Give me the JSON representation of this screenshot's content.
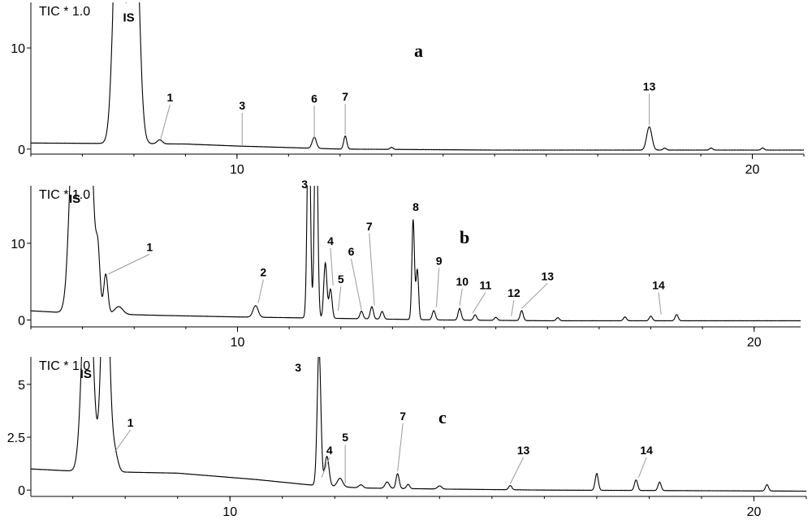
{
  "chart_data": [
    {
      "type": "line",
      "panel_label": "a",
      "header": "TIC * 1.0",
      "x_ticks": [
        10,
        20
      ],
      "y_ticks": [
        0,
        10
      ],
      "xlim": [
        6.0,
        21.0
      ],
      "ylim": [
        -0.5,
        14.5
      ],
      "baseline": [
        [
          6.0,
          0.6
        ],
        [
          9.0,
          0.5
        ],
        [
          10.0,
          0.3
        ],
        [
          12.0,
          0.0
        ],
        [
          15.0,
          -0.1
        ],
        [
          21.0,
          -0.1
        ]
      ],
      "peaks": [
        {
          "x": 7.7,
          "h": 28.0,
          "w": 0.09
        },
        {
          "x": 8.0,
          "h": 28.0,
          "w": 0.09
        },
        {
          "x": 8.5,
          "h": 0.4,
          "w": 0.05
        },
        {
          "x": 11.5,
          "h": 1.1,
          "w": 0.04
        },
        {
          "x": 12.1,
          "h": 1.3,
          "w": 0.03
        },
        {
          "x": 13.0,
          "h": 0.2,
          "w": 0.03
        },
        {
          "x": 18.0,
          "h": 2.3,
          "w": 0.05
        },
        {
          "x": 18.3,
          "h": 0.2,
          "w": 0.03
        },
        {
          "x": 19.2,
          "h": 0.2,
          "w": 0.03
        },
        {
          "x": 20.2,
          "h": 0.2,
          "w": 0.03
        }
      ],
      "labels": [
        {
          "text": "IS",
          "kind": "is",
          "x": 7.9,
          "y": 12.6
        },
        {
          "text": "1",
          "x": 8.7,
          "y": 4.7,
          "px": 8.52,
          "py": 1.0
        },
        {
          "text": "3",
          "x": 10.1,
          "y": 3.9,
          "px": 10.1,
          "py": 0.4
        },
        {
          "text": "6",
          "x": 11.5,
          "y": 4.6,
          "px": 11.5,
          "py": 1.1
        },
        {
          "text": "7",
          "x": 12.1,
          "y": 4.8,
          "px": 12.1,
          "py": 1.5
        },
        {
          "text": "13",
          "x": 18.0,
          "y": 5.8,
          "px": 18.0,
          "py": 2.4
        }
      ]
    },
    {
      "type": "line",
      "panel_label": "b",
      "header": "TIC * 1.0",
      "x_ticks": [
        10,
        20
      ],
      "y_ticks": [
        0,
        10
      ],
      "xlim": [
        6.0,
        20.9
      ],
      "ylim": [
        -0.9,
        17.5
      ],
      "baseline": [
        [
          6.0,
          1.2
        ],
        [
          6.8,
          0.9
        ],
        [
          8.5,
          0.6
        ],
        [
          10.0,
          0.4
        ],
        [
          12.0,
          0.2
        ],
        [
          14.0,
          0.0
        ],
        [
          16.0,
          -0.1
        ],
        [
          20.9,
          -0.1
        ]
      ],
      "peaks": [
        {
          "x": 6.85,
          "h": 30.0,
          "w": 0.09
        },
        {
          "x": 7.12,
          "h": 30.0,
          "w": 0.08
        },
        {
          "x": 7.3,
          "h": 7.2,
          "w": 0.04
        },
        {
          "x": 7.45,
          "h": 5.2,
          "w": 0.04
        },
        {
          "x": 7.7,
          "h": 1.0,
          "w": 0.08
        },
        {
          "x": 10.35,
          "h": 1.5,
          "w": 0.05
        },
        {
          "x": 11.38,
          "h": 30.0,
          "w": 0.03
        },
        {
          "x": 11.52,
          "h": 30.0,
          "w": 0.03
        },
        {
          "x": 11.7,
          "h": 7.2,
          "w": 0.03
        },
        {
          "x": 11.8,
          "h": 3.8,
          "w": 0.03
        },
        {
          "x": 12.4,
          "h": 1.0,
          "w": 0.03
        },
        {
          "x": 12.6,
          "h": 1.6,
          "w": 0.03
        },
        {
          "x": 12.8,
          "h": 1.0,
          "w": 0.03
        },
        {
          "x": 13.4,
          "h": 13.0,
          "w": 0.025
        },
        {
          "x": 13.48,
          "h": 6.5,
          "w": 0.025
        },
        {
          "x": 13.8,
          "h": 1.2,
          "w": 0.03
        },
        {
          "x": 14.3,
          "h": 1.5,
          "w": 0.03
        },
        {
          "x": 14.6,
          "h": 0.7,
          "w": 0.03
        },
        {
          "x": 15.0,
          "h": 0.4,
          "w": 0.03
        },
        {
          "x": 15.5,
          "h": 1.3,
          "w": 0.03
        },
        {
          "x": 16.2,
          "h": 0.4,
          "w": 0.03
        },
        {
          "x": 17.5,
          "h": 0.5,
          "w": 0.03
        },
        {
          "x": 18.0,
          "h": 0.6,
          "w": 0.03
        },
        {
          "x": 18.5,
          "h": 0.8,
          "w": 0.03
        }
      ],
      "labels": [
        {
          "text": "IS",
          "kind": "is",
          "x": 6.85,
          "y": 15.3
        },
        {
          "text": "3",
          "kind": "plain",
          "x": 11.3,
          "y": 17.2
        },
        {
          "text": "1",
          "x": 8.3,
          "y": 9.0,
          "px": 7.5,
          "py": 6.0
        },
        {
          "text": "2",
          "x": 10.5,
          "y": 5.7,
          "px": 10.4,
          "py": 2.2
        },
        {
          "text": "4",
          "x": 11.8,
          "y": 9.8,
          "px": 11.85,
          "py": 4.5
        },
        {
          "text": "5",
          "x": 12.0,
          "y": 4.8,
          "px": 11.95,
          "py": 1.2
        },
        {
          "text": "6",
          "x": 12.2,
          "y": 8.4,
          "px": 12.4,
          "py": 1.3
        },
        {
          "text": "7",
          "x": 12.55,
          "y": 11.7,
          "px": 12.65,
          "py": 1.9
        },
        {
          "text": "8",
          "x": 13.45,
          "y": 14.2,
          "kind": "plain"
        },
        {
          "text": "9",
          "x": 13.9,
          "y": 7.2,
          "px": 13.85,
          "py": 1.7
        },
        {
          "text": "10",
          "x": 14.35,
          "y": 4.5,
          "px": 14.3,
          "py": 1.9
        },
        {
          "text": "11",
          "x": 14.8,
          "y": 4.0,
          "px": 14.55,
          "py": 0.9
        },
        {
          "text": "12",
          "x": 15.35,
          "y": 3.0,
          "px": 15.3,
          "py": 0.5
        },
        {
          "text": "13",
          "x": 16.0,
          "y": 5.2,
          "px": 15.5,
          "py": 1.5
        },
        {
          "text": "14",
          "x": 18.15,
          "y": 4.0,
          "px": 18.2,
          "py": 0.7
        }
      ]
    },
    {
      "type": "line",
      "panel_label": "c",
      "header": "TIC * 1.0",
      "x_ticks": [
        10,
        20
      ],
      "y_ticks": [
        0,
        2.5,
        5
      ],
      "xlim": [
        6.2,
        21.0
      ],
      "ylim": [
        -0.3,
        6.3
      ],
      "baseline": [
        [
          6.2,
          1.0
        ],
        [
          7.0,
          0.9
        ],
        [
          9.0,
          0.8
        ],
        [
          10.5,
          0.5
        ],
        [
          11.5,
          0.25
        ],
        [
          12.5,
          0.1
        ],
        [
          14.0,
          0.05
        ],
        [
          16.0,
          0.0
        ],
        [
          21.0,
          -0.05
        ]
      ],
      "peaks": [
        {
          "x": 7.28,
          "h": 12.0,
          "w": 0.09
        },
        {
          "x": 7.62,
          "h": 12.0,
          "w": 0.07
        },
        {
          "x": 7.8,
          "h": 0.9,
          "w": 0.06
        },
        {
          "x": 11.7,
          "h": 6.5,
          "w": 0.035
        },
        {
          "x": 11.85,
          "h": 1.4,
          "w": 0.04
        },
        {
          "x": 12.1,
          "h": 0.4,
          "w": 0.05
        },
        {
          "x": 12.5,
          "h": 0.15,
          "w": 0.04
        },
        {
          "x": 13.0,
          "h": 0.3,
          "w": 0.04
        },
        {
          "x": 13.2,
          "h": 0.7,
          "w": 0.03
        },
        {
          "x": 13.4,
          "h": 0.2,
          "w": 0.03
        },
        {
          "x": 14.0,
          "h": 0.15,
          "w": 0.04
        },
        {
          "x": 15.35,
          "h": 0.2,
          "w": 0.03
        },
        {
          "x": 17.0,
          "h": 0.8,
          "w": 0.03
        },
        {
          "x": 17.75,
          "h": 0.5,
          "w": 0.03
        },
        {
          "x": 18.2,
          "h": 0.4,
          "w": 0.03
        },
        {
          "x": 20.25,
          "h": 0.3,
          "w": 0.03
        }
      ],
      "labels": [
        {
          "text": "IS",
          "kind": "is",
          "x": 7.25,
          "y": 5.3
        },
        {
          "text": "3",
          "kind": "plain",
          "x": 11.3,
          "y": 5.6
        },
        {
          "text": "1",
          "x": 8.1,
          "y": 3.0,
          "px": 7.8,
          "py": 1.8
        },
        {
          "text": "4",
          "x": 11.9,
          "y": 1.7,
          "px": 11.75,
          "py": 0.6
        },
        {
          "text": "5",
          "x": 12.2,
          "y": 2.3,
          "px": 12.2,
          "py": 0.3
        },
        {
          "text": "7",
          "x": 13.3,
          "y": 3.3,
          "px": 13.2,
          "py": 0.9
        },
        {
          "text": "13",
          "x": 15.6,
          "y": 1.7,
          "px": 15.35,
          "py": 0.3
        },
        {
          "text": "14",
          "x": 17.95,
          "y": 1.7,
          "px": 17.8,
          "py": 0.6
        }
      ]
    }
  ]
}
